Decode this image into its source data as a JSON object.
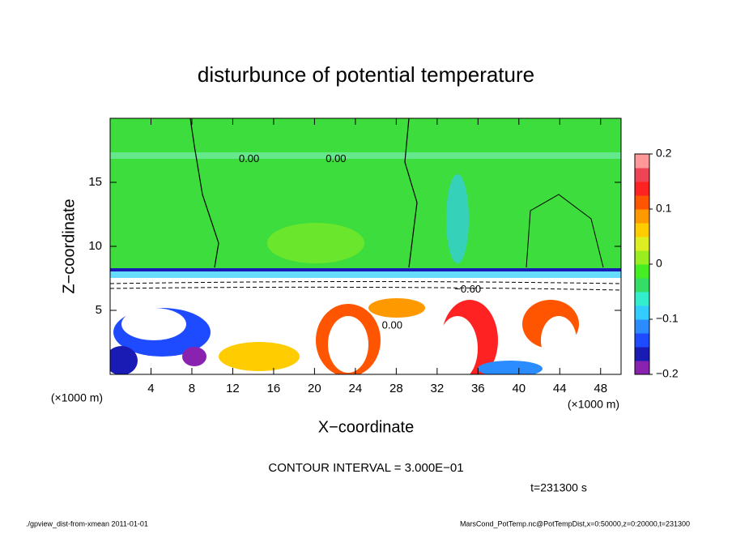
{
  "chart_data": {
    "type": "contour",
    "title": "disturbunce of potential temperature",
    "xlabel": "X−coordinate",
    "ylabel": "Z−coordinate",
    "x_unit": "(×1000 m)",
    "xlim": [
      0,
      50
    ],
    "xticks": [
      4,
      8,
      12,
      16,
      20,
      24,
      28,
      32,
      36,
      40,
      44,
      48
    ],
    "ylim": [
      0,
      20
    ],
    "yticks": [
      5,
      10,
      15
    ],
    "colorbar": {
      "lim": [
        -0.2,
        0.2
      ],
      "ticks": [
        {
          "value": -0.2,
          "label": "−0.2"
        },
        {
          "value": -0.1,
          "label": "−0.1"
        },
        0,
        0.1,
        0.2
      ],
      "colors": [
        "#8a22b0",
        "#1a1ab4",
        "#1e4bff",
        "#2b8cff",
        "#33ccff",
        "#33eecc",
        "#33dd66",
        "#44ee22",
        "#99ee22",
        "#ddee22",
        "#ffcc00",
        "#ff9900",
        "#ff5500",
        "#ff2222",
        "#ee4455",
        "#ff9999"
      ]
    },
    "contour_labels": [
      {
        "x": 13.6,
        "y": 16.8,
        "label": "0.00"
      },
      {
        "x": 22.1,
        "y": 16.8,
        "label": "0.00"
      },
      {
        "x": 35.0,
        "y": 6.6,
        "label": "−0.60"
      },
      {
        "x": 27.6,
        "y": 3.8,
        "label": "0.00"
      }
    ],
    "contour_interval": "CONTOUR INTERVAL = 3.000E−01",
    "time": "t=231300 s",
    "footer_left": "./gpview_dist-from-xmean  2011-01-01",
    "footer_right": "MarsCond_PotTemp.nc@PotTempDist,x=0:50000,z=0:20000,t=231300"
  }
}
